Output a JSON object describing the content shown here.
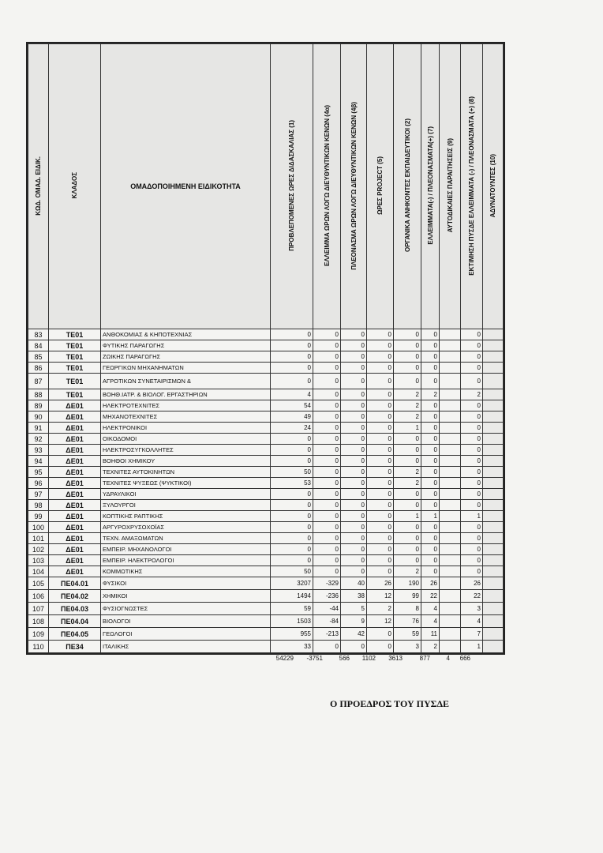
{
  "headers": [
    "ΚΩΔ. ΟΜΑΔ. ΕΙΔΙΚ.",
    "ΚΛΑΔΟΣ",
    "ΟΜΑΔΟΠΟΙΗΜΕΝΗ ΕΙΔΙΚΟΤΗΤΑ",
    "ΠΡΟΒΛΕΠΟΜΕΝΕΣ ΩΡΕΣ ΔΙΔΑΣΚΑΛΙΑΣ (1)",
    "ΕΛΛΕΙΜΜΑ ΩΡΩΝ ΛΟΓΩ ΔΙΕΥΘΥΝΤΙΚΩΝ ΚΕΝΩΝ (4α)",
    "ΠΛΕΟΝΑΣΜΑ ΩΡΩΝ ΛΟΓΩ ΔΙΕΥΘΥΝΤΙΚΩΝ ΚΕΝΩΝ (4β)",
    "ΩΡΕΣ PROJECT (5)",
    "ΟΡΓΑΝΙΚΑ ΑΝΗΚΟΝΤΕΣ ΕΚΠΑΙΔΕΥΤΙΚΟΙ     (2)",
    "ΕΛΛΕΙΜΜΑΤΑ(-) / ΠΛΕΟΝΑΣΜΑΤΑ(+) (7)",
    "ΑΥΤΟΔΙΚΑΙΕΣ ΠΑΡΑΙΤΗΣΕΙΣ (9)",
    "ΕΚΤΙΜΗΣΗ ΠΥΣΔΕ ΕΛΛΕΙΜΜΑΤΑ (-) / ΠΛΕΟΝΑΣΜΑΤΑ (+) (8)",
    "ΑΔΥΝΑΤΟΥΝΤΕΣ (10)"
  ],
  "rows": [
    [
      "83",
      "ΤΕ01",
      "ΑΝΘΟΚΟΜΙΑΣ & ΚΗΠΟΤΕΧΝΙΑΣ",
      "0",
      "0",
      "0",
      "0",
      "0",
      "0",
      "",
      "0",
      ""
    ],
    [
      "84",
      "ΤΕ01",
      "ΦΥΤΙΚΗΣ ΠΑΡΑΓΩΓΗΣ",
      "0",
      "0",
      "0",
      "0",
      "0",
      "0",
      "",
      "0",
      ""
    ],
    [
      "85",
      "ΤΕ01",
      "ΖΩΙΚΗΣ ΠΑΡΑΓΩΓΗΣ",
      "0",
      "0",
      "0",
      "0",
      "0",
      "0",
      "",
      "0",
      ""
    ],
    [
      "86",
      "ΤΕ01",
      "ΓΕΩΡΓΙΚΩΝ ΜΗΧΑΝΗΜΑΤΩΝ",
      "0",
      "0",
      "0",
      "0",
      "0",
      "0",
      "",
      "0",
      ""
    ],
    [
      "87",
      "ΤΕ01",
      "ΑΓΡΟΤΙΚΩΝ ΣΥΝΕΤΑΙΡΙΣΜΩΝ &",
      "0",
      "0",
      "0",
      "0",
      "0",
      "0",
      "",
      "0",
      ""
    ],
    [
      "88",
      "ΤΕ01",
      "ΒΟΗΘ.ΙΑΤΡ. & ΒΙΟΛΟΓ. ΕΡΓΑΣΤΗΡΙΩΝ",
      "4",
      "0",
      "0",
      "0",
      "2",
      "2",
      "",
      "2",
      ""
    ],
    [
      "89",
      "ΔΕ01",
      "ΗΛΕΚΤΡΟΤΕΧΝΙΤΕΣ",
      "54",
      "0",
      "0",
      "0",
      "2",
      "0",
      "",
      "0",
      ""
    ],
    [
      "90",
      "ΔΕ01",
      "ΜΗΧΑΝΟΤΕΧΝΙΤΕΣ",
      "49",
      "0",
      "0",
      "0",
      "2",
      "0",
      "",
      "0",
      ""
    ],
    [
      "91",
      "ΔΕ01",
      "ΗΛΕΚΤΡΟΝΙΚΟΙ",
      "24",
      "0",
      "0",
      "0",
      "1",
      "0",
      "",
      "0",
      ""
    ],
    [
      "92",
      "ΔΕ01",
      "ΟΙΚΟΔΟΜΟΙ",
      "0",
      "0",
      "0",
      "0",
      "0",
      "0",
      "",
      "0",
      ""
    ],
    [
      "93",
      "ΔΕ01",
      "ΗΛΕΚΤΡΟΣΥΓΚΟΛΛΗΤΕΣ",
      "0",
      "0",
      "0",
      "0",
      "0",
      "0",
      "",
      "0",
      ""
    ],
    [
      "94",
      "ΔΕ01",
      "ΒΟΗΘΟΙ ΧΗΜΙΚΟΥ",
      "0",
      "0",
      "0",
      "0",
      "0",
      "0",
      "",
      "0",
      ""
    ],
    [
      "95",
      "ΔΕ01",
      "ΤΕΧΝΙΤΕΣ ΑΥΤΟΚΙΝΗΤΩΝ",
      "50",
      "0",
      "0",
      "0",
      "2",
      "0",
      "",
      "0",
      ""
    ],
    [
      "96",
      "ΔΕ01",
      "ΤΕΧΝΙΤΕΣ ΨΥΞΕΩΣ (ΨΥΚΤΙΚΟΙ)",
      "53",
      "0",
      "0",
      "0",
      "2",
      "0",
      "",
      "0",
      ""
    ],
    [
      "97",
      "ΔΕ01",
      "ΥΔΡΑΥΛΙΚΟΙ",
      "0",
      "0",
      "0",
      "0",
      "0",
      "0",
      "",
      "0",
      ""
    ],
    [
      "98",
      "ΔΕ01",
      "ΞΥΛΟΥΡΓΟΙ",
      "0",
      "0",
      "0",
      "0",
      "0",
      "0",
      "",
      "0",
      ""
    ],
    [
      "99",
      "ΔΕ01",
      "ΚΟΠΤΙΚΗΣ ΡΑΠΤΙΚΗΣ",
      "0",
      "0",
      "0",
      "0",
      "1",
      "1",
      "",
      "1",
      ""
    ],
    [
      "100",
      "ΔΕ01",
      "ΑΡΓΥΡΟΧΡΥΣΟΧΟΪΑΣ",
      "0",
      "0",
      "0",
      "0",
      "0",
      "0",
      "",
      "0",
      ""
    ],
    [
      "101",
      "ΔΕ01",
      "ΤΕΧΝ. ΑΜΑΞΩΜΑΤΩΝ",
      "0",
      "0",
      "0",
      "0",
      "0",
      "0",
      "",
      "0",
      ""
    ],
    [
      "102",
      "ΔΕ01",
      "ΕΜΠΕΙΡ. ΜΗΧΑΝΟΛΟΓΟΙ",
      "0",
      "0",
      "0",
      "0",
      "0",
      "0",
      "",
      "0",
      ""
    ],
    [
      "103",
      "ΔΕ01",
      "ΕΜΠΕΙΡ. ΗΛΕΚΤΡΟΛΟΓΟΙ",
      "0",
      "0",
      "0",
      "0",
      "0",
      "0",
      "",
      "0",
      ""
    ],
    [
      "104",
      "ΔΕ01",
      "ΚΟΜΜΩΤΙΚΗΣ",
      "50",
      "0",
      "0",
      "0",
      "2",
      "0",
      "",
      "0",
      ""
    ],
    [
      "105",
      "ΠΕ04.01",
      "ΦΥΣΙΚΟΙ",
      "3207",
      "-329",
      "40",
      "26",
      "190",
      "26",
      "",
      "26",
      ""
    ],
    [
      "106",
      "ΠΕ04.02",
      "ΧΗΜΙΚΟΙ",
      "1494",
      "-236",
      "38",
      "12",
      "99",
      "22",
      "",
      "22",
      ""
    ],
    [
      "107",
      "ΠΕ04.03",
      "ΦΥΣΙΟΓΝΩΣΤΕΣ",
      "59",
      "-44",
      "5",
      "2",
      "8",
      "4",
      "",
      "3",
      ""
    ],
    [
      "108",
      "ΠΕ04.04",
      "ΒΙΟΛΟΓΟΙ",
      "1503",
      "-84",
      "9",
      "12",
      "76",
      "4",
      "",
      "4",
      ""
    ],
    [
      "109",
      "ΠΕ04.05",
      "ΓΕΩΛΟΓΟΙ",
      "955",
      "-213",
      "42",
      "0",
      "59",
      "11",
      "",
      "7",
      ""
    ],
    [
      "110",
      "ΠΕ34",
      "ΙΤΑΛΙΚΗΣ",
      "33",
      "0",
      "0",
      "0",
      "3",
      "2",
      "",
      "1",
      ""
    ]
  ],
  "totals": [
    "54229",
    "-3751",
    "566",
    "1102",
    "3613",
    "877",
    "4",
    "666"
  ],
  "signature": "Ο ΠΡΟΕΔΡΟΣ ΤΟΥ ΠΥΣΔΕ"
}
